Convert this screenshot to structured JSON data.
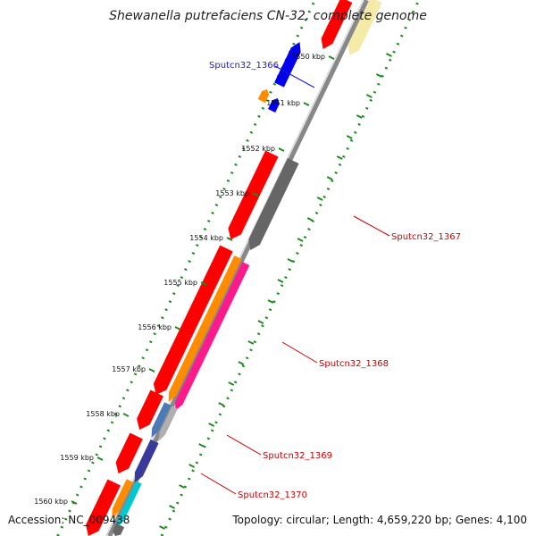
{
  "title": "Shewanella putrefaciens CN-32, complete genome",
  "footer": {
    "accession": "Accession: NC_009438",
    "summary": "Topology: circular; Length: 4,659,220 bp; Genes: 4,100"
  },
  "ticks": [
    {
      "label": "1550 kbp"
    },
    {
      "label": "1551 kbp"
    },
    {
      "label": "1552 kbp"
    },
    {
      "label": "1553 kbp"
    },
    {
      "label": "1554 kbp"
    },
    {
      "label": "1555 kbp"
    },
    {
      "label": "1556 kbp"
    },
    {
      "label": "1557 kbp"
    },
    {
      "label": "1558 kbp"
    },
    {
      "label": "1559 kbp"
    },
    {
      "label": "1560 kbp"
    }
  ],
  "gene_labels": [
    {
      "text": "Sputcn32_1366",
      "color": "#1a1ad0"
    },
    {
      "text": "Sputcn32_1367",
      "color": "#cc0000"
    },
    {
      "text": "Sputcn32_1368",
      "color": "#cc0000"
    },
    {
      "text": "Sputcn32_1369",
      "color": "#cc0000"
    },
    {
      "text": "Sputcn32_1370",
      "color": "#cc0000"
    }
  ],
  "colors": {
    "cds": "#ff0000",
    "gene_gray": "#666666",
    "blue": "#0000ee",
    "orange": "#ff8c00",
    "pink": "#ff1a8c",
    "steel": "#4a7ab8",
    "indigo": "#3a3a9a",
    "cyan": "#00c8d0",
    "cream": "#f5eba8",
    "backbone": "#888888",
    "tick_dots": "#228B22"
  }
}
